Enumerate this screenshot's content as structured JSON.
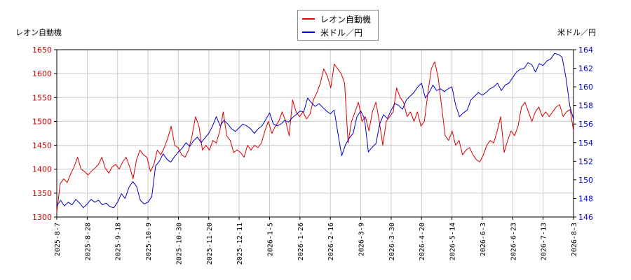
{
  "chart_data": {
    "type": "line",
    "left_axis_label": "レオン自動機",
    "right_axis_label": "米ドル／円",
    "x_ticks": [
      "2025-8-7",
      "2025-8-28",
      "2025-9-18",
      "2025-10-9",
      "2025-10-30",
      "2025-11-20",
      "2025-12-11",
      "2026-1-5",
      "2026-1-26",
      "2026-2-16",
      "2026-3-9",
      "2026-3-30",
      "2026-4-20",
      "2026-5-14",
      "2026-6-3",
      "2026-6-23",
      "2026-7-13",
      "2026-8-3"
    ],
    "y_left": {
      "min": 1300,
      "max": 1650,
      "ticks": [
        1300,
        1350,
        1400,
        1450,
        1500,
        1550,
        1600,
        1650
      ]
    },
    "y_right": {
      "min": 146,
      "max": 164,
      "ticks": [
        146,
        148,
        150,
        152,
        154,
        156,
        158,
        160,
        162,
        164
      ]
    },
    "grid": true,
    "series": [
      {
        "name": "レオン自動機",
        "color": "#dd0000",
        "axis": "left",
        "values": [
          1310,
          1370,
          1380,
          1372,
          1390,
          1405,
          1425,
          1400,
          1395,
          1388,
          1396,
          1402,
          1410,
          1425,
          1402,
          1392,
          1405,
          1410,
          1400,
          1415,
          1425,
          1405,
          1380,
          1420,
          1440,
          1430,
          1425,
          1395,
          1410,
          1440,
          1430,
          1445,
          1465,
          1490,
          1450,
          1445,
          1430,
          1425,
          1440,
          1470,
          1510,
          1490,
          1440,
          1450,
          1440,
          1460,
          1455,
          1480,
          1520,
          1470,
          1460,
          1435,
          1440,
          1435,
          1425,
          1450,
          1440,
          1450,
          1445,
          1455,
          1480,
          1500,
          1475,
          1490,
          1500,
          1520,
          1500,
          1470,
          1545,
          1520,
          1510,
          1520,
          1505,
          1515,
          1545,
          1560,
          1580,
          1610,
          1595,
          1570,
          1620,
          1610,
          1600,
          1580,
          1455,
          1500,
          1520,
          1540,
          1500,
          1510,
          1480,
          1520,
          1540,
          1500,
          1450,
          1500,
          1510,
          1520,
          1570,
          1550,
          1540,
          1510,
          1520,
          1500,
          1520,
          1490,
          1500,
          1560,
          1610,
          1625,
          1590,
          1530,
          1470,
          1460,
          1480,
          1450,
          1460,
          1430,
          1440,
          1445,
          1430,
          1420,
          1415,
          1430,
          1450,
          1460,
          1455,
          1480,
          1510,
          1435,
          1460,
          1480,
          1470,
          1490,
          1530,
          1540,
          1520,
          1500,
          1520,
          1530,
          1510,
          1520,
          1510,
          1520,
          1530,
          1535,
          1510,
          1520,
          1525,
          1480
        ]
      },
      {
        "name": "米ドル／円",
        "color": "#0000cc",
        "axis": "right",
        "values": [
          147.2,
          147.8,
          147.2,
          147.6,
          147.3,
          147.9,
          147.5,
          147.0,
          147.4,
          147.9,
          147.6,
          147.8,
          147.3,
          147.5,
          147.1,
          147.0,
          147.6,
          148.5,
          148.0,
          149.2,
          149.8,
          149.3,
          147.8,
          147.4,
          147.6,
          148.2,
          151.5,
          152.0,
          152.8,
          152.2,
          151.9,
          152.5,
          153.0,
          153.4,
          154.0,
          153.6,
          154.2,
          154.6,
          154.0,
          154.5,
          155.0,
          155.8,
          156.8,
          155.8,
          156.4,
          156.0,
          155.5,
          155.2,
          155.6,
          156.0,
          155.8,
          155.5,
          155.0,
          155.5,
          155.8,
          156.5,
          157.2,
          156.0,
          155.8,
          156.0,
          156.4,
          156.2,
          156.7,
          157.0,
          157.4,
          157.3,
          158.8,
          158.3,
          157.9,
          158.2,
          157.8,
          157.4,
          157.1,
          157.5,
          155.0,
          152.6,
          153.8,
          154.5,
          155.0,
          156.8,
          157.4,
          156.6,
          153.0,
          153.5,
          153.9,
          156.0,
          157.0,
          156.6,
          157.5,
          158.2,
          158.0,
          157.6,
          158.6,
          159.0,
          159.4,
          160.0,
          160.4,
          158.8,
          159.4,
          160.2,
          159.6,
          159.8,
          159.5,
          159.8,
          160.0,
          158.0,
          156.8,
          157.2,
          157.5,
          158.6,
          159.0,
          159.4,
          159.1,
          159.4,
          159.8,
          160.0,
          160.4,
          159.6,
          160.2,
          160.4,
          161.0,
          161.6,
          161.9,
          162.0,
          162.6,
          162.4,
          161.6,
          162.5,
          162.3,
          162.8,
          163.0,
          163.6,
          163.5,
          163.2,
          161.0,
          158.0,
          156.5
        ]
      }
    ]
  }
}
